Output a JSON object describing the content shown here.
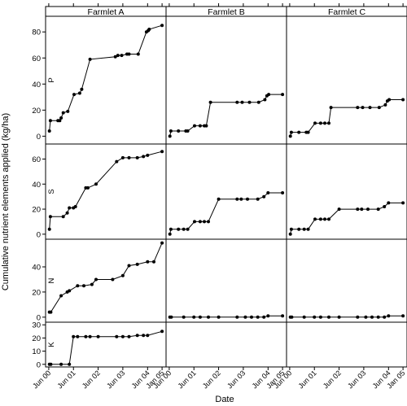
{
  "chart_data": {
    "type": "line",
    "ylabel": "Cumulative nutrient elements applied (kg/ha)",
    "xlabel": "Date",
    "columns": [
      "Farmlet A",
      "Farmlet B",
      "Farmlet C"
    ],
    "x_ticks": [
      {
        "date": "2000-06-01",
        "label": "Jun 00"
      },
      {
        "date": "2001-06-01",
        "label": "Jun 01"
      },
      {
        "date": "2002-06-01",
        "label": "Jun 02"
      },
      {
        "date": "2003-06-01",
        "label": "Jun 03"
      },
      {
        "date": "2004-06-01",
        "label": "Jun 04"
      },
      {
        "date": "2005-01-01",
        "label": "Jan 05"
      }
    ],
    "xlim": [
      "2000-04-15",
      "2005-03-01"
    ],
    "rows": [
      {
        "name": "P",
        "ylim": [
          -6,
          92
        ],
        "ticks": [
          0,
          20,
          40,
          60,
          80
        ],
        "series": [
          {
            "farmlet": "Farmlet A",
            "x": [
              "2000-06-10",
              "2000-06-25",
              "2000-10-15",
              "2000-11-10",
              "2000-12-01",
              "2001-01-01",
              "2001-03-10",
              "2001-06-10",
              "2001-09-01",
              "2001-10-01",
              "2002-02-01",
              "2003-02-10",
              "2003-03-20",
              "2003-05-15",
              "2003-08-01",
              "2003-09-01",
              "2004-01-15",
              "2004-05-15",
              "2004-06-10",
              "2004-06-25",
              "2005-01-01"
            ],
            "y": [
              4,
              12,
              12,
              12,
              14,
              18,
              19,
              32,
              33,
              36,
              59,
              61,
              62,
              62,
              63,
              63,
              63,
              80,
              81,
              82,
              85
            ]
          },
          {
            "farmlet": "Farmlet B",
            "x": [
              "2000-06-10",
              "2000-06-25",
              "2000-10-15",
              "2001-02-01",
              "2001-03-01",
              "2001-06-10",
              "2001-09-01",
              "2001-11-01",
              "2001-12-01",
              "2002-02-01",
              "2003-03-01",
              "2003-05-15",
              "2003-09-01",
              "2004-01-15",
              "2004-04-15",
              "2004-05-15",
              "2004-06-10",
              "2005-01-01"
            ],
            "y": [
              0,
              4,
              4,
              4,
              4,
              8,
              8,
              8,
              8,
              26,
              26,
              26,
              26,
              26,
              28,
              31,
              32,
              32
            ]
          },
          {
            "farmlet": "Farmlet C",
            "x": [
              "2000-06-10",
              "2000-06-25",
              "2000-10-15",
              "2001-02-01",
              "2001-03-01",
              "2001-06-10",
              "2001-09-01",
              "2001-11-01",
              "2002-01-01",
              "2002-02-01",
              "2003-03-01",
              "2003-05-15",
              "2003-09-01",
              "2004-01-15",
              "2004-04-15",
              "2004-05-15",
              "2004-06-10",
              "2005-01-01"
            ],
            "y": [
              0,
              3,
              3,
              3,
              3,
              10,
              10,
              10,
              10,
              22,
              22,
              22,
              22,
              22,
              24,
              27,
              28,
              28
            ]
          }
        ]
      },
      {
        "name": "S",
        "ylim": [
          -4,
          72
        ],
        "ticks": [
          0,
          20,
          40,
          60
        ],
        "series": [
          {
            "farmlet": "Farmlet A",
            "x": [
              "2000-06-10",
              "2000-06-25",
              "2001-01-01",
              "2001-03-01",
              "2001-04-01",
              "2001-06-01",
              "2001-07-01",
              "2001-12-01",
              "2002-01-01",
              "2002-05-01",
              "2003-03-01",
              "2003-06-01",
              "2003-09-01",
              "2004-01-01",
              "2004-04-01",
              "2004-06-01",
              "2005-01-01"
            ],
            "y": [
              4,
              14,
              14,
              17,
              21,
              21,
              22,
              37,
              37,
              40,
              58,
              61,
              61,
              61,
              62,
              63,
              66
            ]
          },
          {
            "farmlet": "Farmlet B",
            "x": [
              "2000-06-10",
              "2000-06-25",
              "2000-10-15",
              "2001-01-01",
              "2001-03-01",
              "2001-06-10",
              "2001-09-01",
              "2001-11-01",
              "2002-01-01",
              "2002-06-01",
              "2003-03-01",
              "2003-05-01",
              "2003-08-01",
              "2004-01-01",
              "2004-04-01",
              "2004-06-01",
              "2005-01-01"
            ],
            "y": [
              0,
              4,
              4,
              4,
              4,
              10,
              10,
              10,
              10,
              28,
              28,
              28,
              28,
              28,
              30,
              33,
              33
            ]
          },
          {
            "farmlet": "Farmlet C",
            "x": [
              "2000-06-10",
              "2000-06-25",
              "2000-10-15",
              "2001-01-01",
              "2001-03-01",
              "2001-06-10",
              "2001-09-01",
              "2001-11-01",
              "2002-01-01",
              "2002-06-01",
              "2003-03-01",
              "2003-05-01",
              "2003-08-01",
              "2004-01-01",
              "2004-04-01",
              "2004-06-01",
              "2005-01-01"
            ],
            "y": [
              0,
              4,
              4,
              4,
              4,
              12,
              12,
              12,
              12,
              20,
              20,
              20,
              20,
              20,
              22,
              25,
              25
            ]
          }
        ]
      },
      {
        "name": "N",
        "ylim": [
          -4,
          62
        ],
        "ticks": [
          0,
          20,
          40
        ],
        "series": [
          {
            "farmlet": "Farmlet A",
            "x": [
              "2000-06-10",
              "2000-07-01",
              "2000-12-01",
              "2001-03-01",
              "2001-04-01",
              "2001-08-01",
              "2001-11-01",
              "2002-03-01",
              "2002-05-01",
              "2003-01-01",
              "2003-06-01",
              "2003-09-01",
              "2004-01-01",
              "2004-06-01",
              "2004-09-01",
              "2005-01-01"
            ],
            "y": [
              4,
              4,
              17,
              20,
              21,
              25,
              25,
              26,
              30,
              30,
              33,
              41,
              42,
              44,
              44,
              59
            ]
          },
          {
            "farmlet": "Farmlet B",
            "x": [
              "2000-06-10",
              "2000-07-01",
              "2001-01-01",
              "2001-06-01",
              "2001-09-01",
              "2002-01-01",
              "2002-06-01",
              "2003-03-01",
              "2003-07-01",
              "2003-10-01",
              "2004-01-01",
              "2004-04-01",
              "2004-06-01",
              "2005-01-01"
            ],
            "y": [
              0,
              0,
              0,
              0,
              0,
              0,
              0,
              0,
              0,
              0,
              0,
              0,
              1,
              1
            ]
          },
          {
            "farmlet": "Farmlet C",
            "x": [
              "2000-06-10",
              "2000-07-01",
              "2001-01-01",
              "2001-06-01",
              "2001-09-01",
              "2002-01-01",
              "2002-06-01",
              "2003-03-01",
              "2003-07-01",
              "2003-10-01",
              "2004-01-01",
              "2004-04-01",
              "2004-06-01",
              "2005-01-01"
            ],
            "y": [
              0,
              0,
              0,
              0,
              0,
              0,
              0,
              0,
              0,
              0,
              0,
              0,
              1,
              1
            ]
          }
        ]
      },
      {
        "name": "K",
        "ylim": [
          -2,
          32
        ],
        "ticks": [
          0,
          10,
          20,
          30
        ],
        "series": [
          {
            "farmlet": "Farmlet A",
            "x": [
              "2000-06-10",
              "2000-07-01",
              "2000-12-01",
              "2001-04-01",
              "2001-06-01",
              "2001-08-01",
              "2001-12-01",
              "2002-02-01",
              "2002-06-01",
              "2003-03-01",
              "2003-06-01",
              "2003-09-01",
              "2004-01-01",
              "2004-04-01",
              "2004-06-01",
              "2005-01-01"
            ],
            "y": [
              0,
              0,
              0,
              0,
              21,
              21,
              21,
              21,
              21,
              21,
              21,
              21,
              22,
              22,
              22,
              25
            ]
          }
        ]
      }
    ]
  }
}
